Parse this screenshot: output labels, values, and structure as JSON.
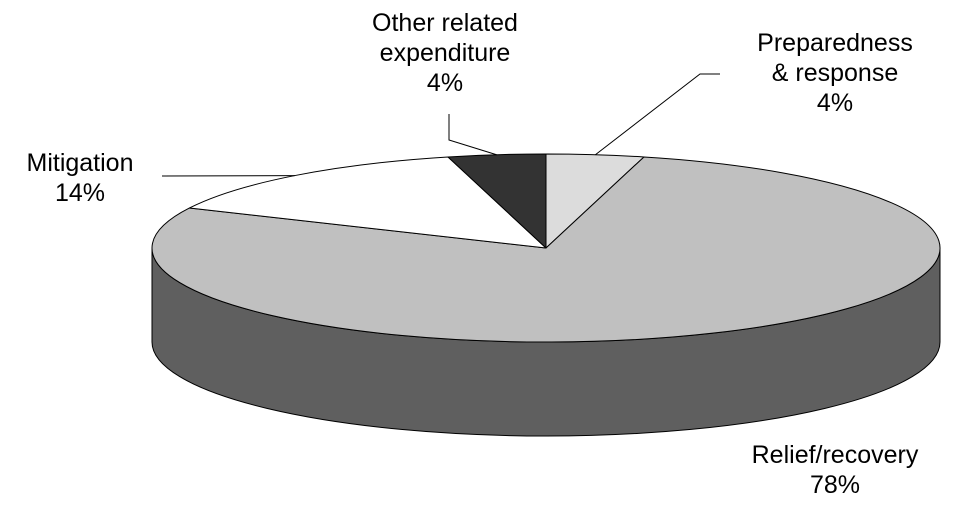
{
  "chart_data": {
    "type": "pie",
    "style": "3d",
    "slices": [
      {
        "label": "Preparedness & response",
        "label_lines": [
          "Preparedness",
          "& response"
        ],
        "pct": "4%",
        "value": 4,
        "color": "#dcdcdc"
      },
      {
        "label": "Relief/recovery",
        "label_lines": [
          "Relief/recovery"
        ],
        "pct": "78%",
        "value": 78,
        "color": "#c0c0c0"
      },
      {
        "label": "Mitigation",
        "label_lines": [
          "Mitigation"
        ],
        "pct": "14%",
        "value": 14,
        "color": "#ffffff"
      },
      {
        "label": "Other related expenditure",
        "label_lines": [
          "Other related",
          "expenditure"
        ],
        "pct": "4%",
        "value": 4,
        "color": "#333333"
      }
    ],
    "side_color": "#5f5f5f",
    "edge_color": "#000000",
    "legend": "none"
  }
}
